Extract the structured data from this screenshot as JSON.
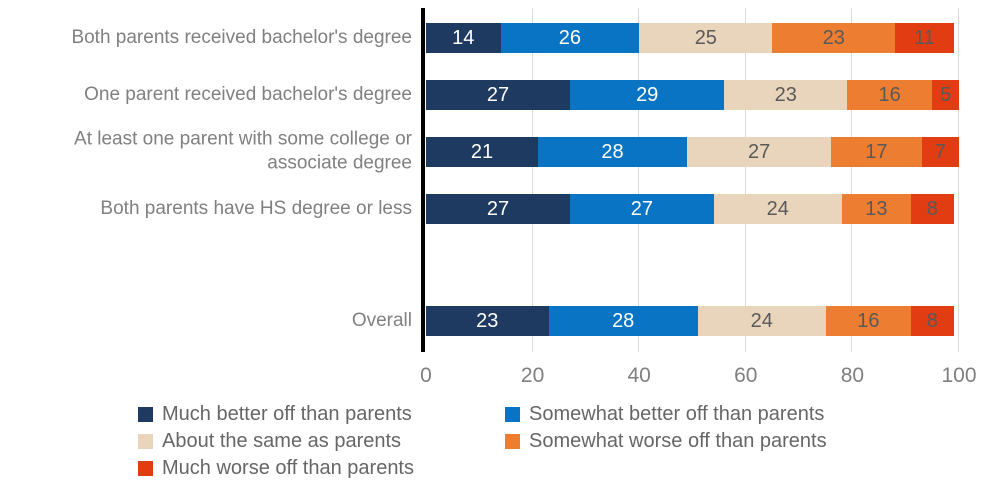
{
  "chart_data": {
    "type": "bar",
    "orientation": "horizontal",
    "stacked": true,
    "title": "",
    "xlabel": "",
    "ylabel": "",
    "xlim": [
      0,
      100
    ],
    "x_ticks": [
      0,
      20,
      40,
      60,
      80,
      100
    ],
    "grid": true,
    "legend_position": "bottom",
    "categories": [
      "Both parents received bachelor's degree",
      "One parent received bachelor's degree",
      "At least one parent with some college or\nassociate degree",
      "Both parents have HS degree or less",
      "Overall"
    ],
    "series": [
      {
        "name": "Much better off than parents",
        "color": "#1f3a60",
        "label_color": "#ffffff",
        "values": [
          14,
          27,
          21,
          27,
          23
        ]
      },
      {
        "name": "Somewhat better off than parents",
        "color": "#0a74c4",
        "label_color": "#ffffff",
        "values": [
          26,
          29,
          28,
          27,
          28
        ]
      },
      {
        "name": "About the same as parents",
        "color": "#e9d5bc",
        "label_color": "#595959",
        "values": [
          25,
          23,
          27,
          24,
          24
        ]
      },
      {
        "name": "Somewhat worse off than parents",
        "color": "#ed7d31",
        "label_color": "#595959",
        "values": [
          23,
          16,
          17,
          13,
          16
        ]
      },
      {
        "name": "Much worse off than parents",
        "color": "#e23d12",
        "label_color": "#595959",
        "values": [
          11,
          5,
          7,
          8,
          8
        ]
      }
    ],
    "colors": {
      "gridline": "#d9d9d9",
      "axis_line": "#000000",
      "category_label": "#808080",
      "tick_label": "#7f7f7f",
      "legend_label": "#666666"
    }
  }
}
